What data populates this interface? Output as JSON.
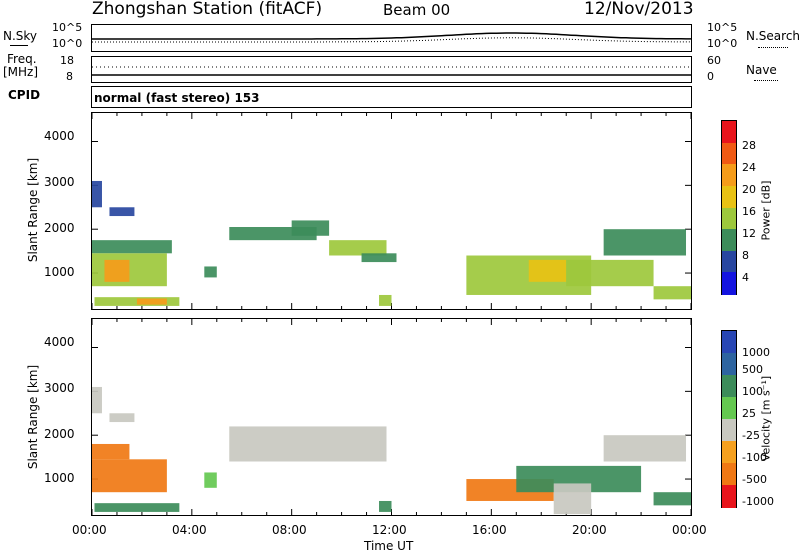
{
  "header": {
    "station": "Zhongshan Station (fitACF)",
    "beam": "Beam 00",
    "date": "12/Nov/2013"
  },
  "top_panels": {
    "nsky_label": "N.Sky",
    "nsky_ticks": [
      "10^5",
      "10^0"
    ],
    "nsearch_label": "N.Search",
    "nsearch_ticks": [
      "10^5",
      "10^0"
    ],
    "freq_label": "Freq.",
    "freq_unit": "[MHz]",
    "freq_ticks": [
      "18",
      "8"
    ],
    "nave_label": "Nave",
    "nave_ticks": [
      "60",
      "0"
    ],
    "cpid_label": "CPID",
    "cpid_text": "normal (fast stereo) 153"
  },
  "axes": {
    "ylabel": "Slant Range [km]",
    "xlabel": "Time UT",
    "x_ticks": [
      "00:00",
      "04:00",
      "08:00",
      "12:00",
      "16:00",
      "20:00",
      "00:00"
    ],
    "y_ticks": [
      "4000",
      "3000",
      "2000",
      "1000"
    ]
  },
  "power_colorbar": {
    "label": "Power [dB]",
    "ticks": [
      "28",
      "24",
      "20",
      "16",
      "12",
      "8",
      "4"
    ],
    "colors": [
      "#e8141c",
      "#f05a14",
      "#f59c1a",
      "#e8c214",
      "#9dc83c",
      "#3c8c5a",
      "#2846a0",
      "#1414e0"
    ]
  },
  "velocity_colorbar": {
    "label": "Velocity [m s⁻¹]",
    "ticks": [
      "1000",
      "500",
      "100",
      "25",
      "-25",
      "-100",
      "-500",
      "-1000"
    ],
    "colors": [
      "#2846b4",
      "#2d64a0",
      "#3c8c5a",
      "#64c850",
      "#c8c8c0",
      "#f5a01e",
      "#f07814",
      "#e8141c"
    ]
  },
  "chart_data": [
    {
      "type": "heatmap",
      "title": "Power",
      "x_range_hours": [
        0,
        24
      ],
      "y_range_km": [
        180,
        4650
      ],
      "zlabel": "Power [dB]",
      "regions": [
        {
          "t0": 0.0,
          "t1": 0.4,
          "r0": 2500,
          "r1": 3100,
          "value": 8
        },
        {
          "t0": 0.7,
          "t1": 1.7,
          "r0": 2300,
          "r1": 2500,
          "value": 8
        },
        {
          "t0": 0.0,
          "t1": 3.2,
          "r0": 1450,
          "r1": 1750,
          "value": 10
        },
        {
          "t0": 0.0,
          "t1": 3.0,
          "r0": 700,
          "r1": 1450,
          "value": 16
        },
        {
          "t0": 0.5,
          "t1": 1.5,
          "r0": 800,
          "r1": 1300,
          "value": 24
        },
        {
          "t0": 0.1,
          "t1": 3.5,
          "r0": 250,
          "r1": 450,
          "value": 14
        },
        {
          "t0": 1.8,
          "t1": 3.0,
          "r0": 280,
          "r1": 420,
          "value": 22
        },
        {
          "t0": 4.5,
          "t1": 5.0,
          "r0": 900,
          "r1": 1150,
          "value": 12
        },
        {
          "t0": 5.5,
          "t1": 9.0,
          "r0": 1750,
          "r1": 2050,
          "value": 9
        },
        {
          "t0": 8.0,
          "t1": 9.5,
          "r0": 1850,
          "r1": 2200,
          "value": 10
        },
        {
          "t0": 9.5,
          "t1": 11.8,
          "r0": 1400,
          "r1": 1750,
          "value": 13
        },
        {
          "t0": 10.8,
          "t1": 12.2,
          "r0": 1250,
          "r1": 1450,
          "value": 10
        },
        {
          "t0": 11.5,
          "t1": 12.0,
          "r0": 250,
          "r1": 500,
          "value": 14
        },
        {
          "t0": 15.0,
          "t1": 20.0,
          "r0": 500,
          "r1": 1400,
          "value": 13
        },
        {
          "t0": 17.5,
          "t1": 19.0,
          "r0": 800,
          "r1": 1300,
          "value": 19
        },
        {
          "t0": 19.0,
          "t1": 22.5,
          "r0": 700,
          "r1": 1300,
          "value": 14
        },
        {
          "t0": 20.5,
          "t1": 23.8,
          "r0": 1400,
          "r1": 2000,
          "value": 12
        },
        {
          "t0": 22.5,
          "t1": 24.0,
          "r0": 400,
          "r1": 700,
          "value": 16
        }
      ]
    },
    {
      "type": "heatmap",
      "title": "Velocity",
      "x_range_hours": [
        0,
        24
      ],
      "y_range_km": [
        180,
        4650
      ],
      "zlabel": "Velocity [m s⁻¹]",
      "regions": [
        {
          "t0": 0.0,
          "t1": 0.4,
          "r0": 2500,
          "r1": 3100,
          "value": 0
        },
        {
          "t0": 0.7,
          "t1": 1.7,
          "r0": 2300,
          "r1": 2500,
          "value": 0
        },
        {
          "t0": 0.0,
          "t1": 1.5,
          "r0": 1450,
          "r1": 1800,
          "value": -100
        },
        {
          "t0": 0.0,
          "t1": 3.0,
          "r0": 700,
          "r1": 1450,
          "value": -300
        },
        {
          "t0": 0.1,
          "t1": 3.5,
          "r0": 250,
          "r1": 450,
          "value": 200
        },
        {
          "t0": 4.5,
          "t1": 5.0,
          "r0": 800,
          "r1": 1150,
          "value": 50
        },
        {
          "t0": 5.5,
          "t1": 11.8,
          "r0": 1400,
          "r1": 2200,
          "value": 0
        },
        {
          "t0": 11.5,
          "t1": 12.0,
          "r0": 250,
          "r1": 500,
          "value": 200
        },
        {
          "t0": 15.0,
          "t1": 18.5,
          "r0": 500,
          "r1": 1000,
          "value": -300
        },
        {
          "t0": 17.0,
          "t1": 22.0,
          "r0": 700,
          "r1": 1300,
          "value": 150
        },
        {
          "t0": 18.5,
          "t1": 20.0,
          "r0": 200,
          "r1": 900,
          "value": 0
        },
        {
          "t0": 20.5,
          "t1": 23.8,
          "r0": 1400,
          "r1": 2000,
          "value": 0
        },
        {
          "t0": 22.5,
          "t1": 24.0,
          "r0": 400,
          "r1": 700,
          "value": 200
        }
      ]
    }
  ]
}
